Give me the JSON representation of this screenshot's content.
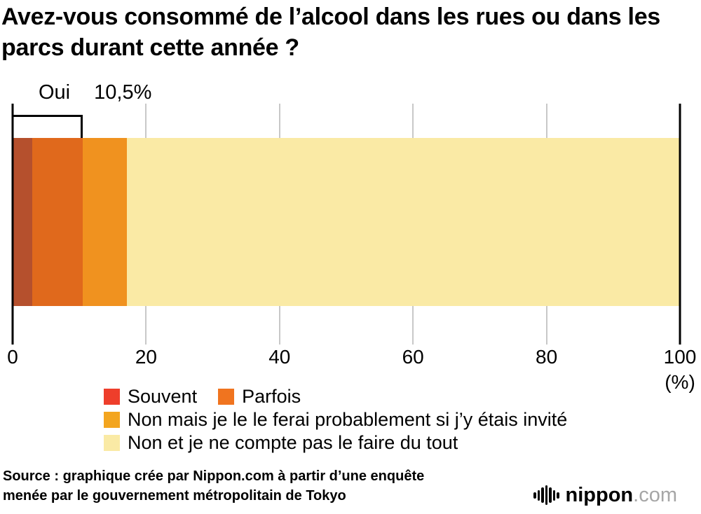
{
  "chart_data": {
    "type": "bar",
    "stacked": true,
    "orientation": "horizontal",
    "title": "Avez-vous consommé de l’alcool dans les rues ou dans les parcs durant cette année ?",
    "series": [
      {
        "name": "Souvent",
        "value": 2.9,
        "bar_color": "#b5502d",
        "legend_color": "#ee3e2b"
      },
      {
        "name": "Parfois",
        "value": 7.6,
        "bar_color": "#e0691c",
        "legend_color": "#f0741f"
      },
      {
        "name": "Non mais je le le ferai probablement si j’y étais invité",
        "value": 6.6,
        "bar_color": "#f0921f",
        "legend_color": "#f3a51f"
      },
      {
        "name": "Non et je ne compte pas le faire du tout",
        "value": 82.9,
        "bar_color": "#faeaa5",
        "legend_color": "#faeaa5"
      }
    ],
    "annotation": {
      "label": "Oui",
      "value": "10,5%",
      "span_pct": 10.5
    },
    "x_ticks": [
      0,
      20,
      40,
      60,
      80,
      100
    ],
    "xlim": [
      0,
      100
    ],
    "x_unit": "(%)",
    "grid": true,
    "legend_position": "bottom",
    "legend_rows": [
      [
        0,
        1
      ],
      [
        2
      ],
      [
        3
      ]
    ]
  },
  "source": {
    "line1": "Source : graphique crée par Nippon.com à partir d’une enquête",
    "line2": "menée par le gouvernement métropolitain de Tokyo"
  },
  "logo": {
    "brand": "nippon",
    "suffix": ".com"
  }
}
